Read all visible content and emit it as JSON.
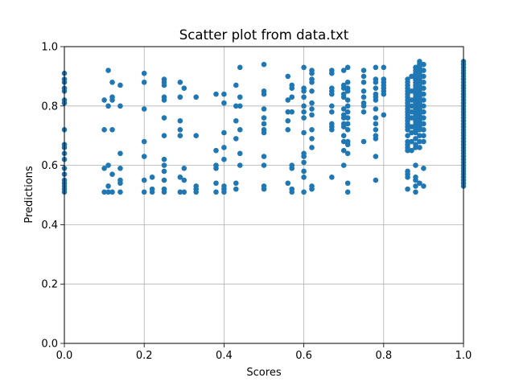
{
  "chart_data": {
    "type": "scatter",
    "title": "Scatter plot from data.txt",
    "xlabel": "Scores",
    "ylabel": "Predictions",
    "xlim": [
      0,
      1
    ],
    "ylim": [
      0,
      1
    ],
    "xticks": [
      "0.0",
      "0.2",
      "0.4",
      "0.6",
      "0.8",
      "1.0"
    ],
    "yticks": [
      "0.0",
      "0.2",
      "0.4",
      "0.6",
      "0.8",
      "1.0"
    ],
    "grid": true,
    "marker_color": "#1f77b4",
    "points": [
      [
        0.0,
        0.91
      ],
      [
        0.0,
        0.89
      ],
      [
        0.0,
        0.88
      ],
      [
        0.0,
        0.86
      ],
      [
        0.0,
        0.85
      ],
      [
        0.0,
        0.82
      ],
      [
        0.0,
        0.81
      ],
      [
        0.0,
        0.72
      ],
      [
        0.0,
        0.67
      ],
      [
        0.0,
        0.66
      ],
      [
        0.0,
        0.64
      ],
      [
        0.0,
        0.62
      ],
      [
        0.0,
        0.59
      ],
      [
        0.0,
        0.57
      ],
      [
        0.0,
        0.55
      ],
      [
        0.0,
        0.54
      ],
      [
        0.0,
        0.53
      ],
      [
        0.0,
        0.52
      ],
      [
        0.0,
        0.51
      ],
      [
        0.1,
        0.82
      ],
      [
        0.1,
        0.72
      ],
      [
        0.1,
        0.59
      ],
      [
        0.1,
        0.51
      ],
      [
        0.11,
        0.92
      ],
      [
        0.11,
        0.8
      ],
      [
        0.11,
        0.6
      ],
      [
        0.11,
        0.53
      ],
      [
        0.11,
        0.51
      ],
      [
        0.12,
        0.88
      ],
      [
        0.12,
        0.83
      ],
      [
        0.12,
        0.82
      ],
      [
        0.12,
        0.72
      ],
      [
        0.12,
        0.57
      ],
      [
        0.12,
        0.51
      ],
      [
        0.14,
        0.87
      ],
      [
        0.14,
        0.8
      ],
      [
        0.14,
        0.64
      ],
      [
        0.14,
        0.59
      ],
      [
        0.14,
        0.55
      ],
      [
        0.14,
        0.54
      ],
      [
        0.14,
        0.51
      ],
      [
        0.2,
        0.91
      ],
      [
        0.2,
        0.88
      ],
      [
        0.2,
        0.79
      ],
      [
        0.2,
        0.68
      ],
      [
        0.2,
        0.63
      ],
      [
        0.2,
        0.55
      ],
      [
        0.2,
        0.51
      ],
      [
        0.22,
        0.56
      ],
      [
        0.22,
        0.52
      ],
      [
        0.22,
        0.51
      ],
      [
        0.25,
        0.89
      ],
      [
        0.25,
        0.88
      ],
      [
        0.25,
        0.87
      ],
      [
        0.25,
        0.83
      ],
      [
        0.25,
        0.82
      ],
      [
        0.25,
        0.76
      ],
      [
        0.25,
        0.7
      ],
      [
        0.25,
        0.62
      ],
      [
        0.25,
        0.6
      ],
      [
        0.25,
        0.58
      ],
      [
        0.25,
        0.55
      ],
      [
        0.25,
        0.52
      ],
      [
        0.25,
        0.51
      ],
      [
        0.29,
        0.88
      ],
      [
        0.29,
        0.83
      ],
      [
        0.29,
        0.75
      ],
      [
        0.29,
        0.72
      ],
      [
        0.29,
        0.7
      ],
      [
        0.29,
        0.56
      ],
      [
        0.29,
        0.51
      ],
      [
        0.3,
        0.86
      ],
      [
        0.3,
        0.59
      ],
      [
        0.3,
        0.55
      ],
      [
        0.3,
        0.51
      ],
      [
        0.33,
        0.83
      ],
      [
        0.33,
        0.7
      ],
      [
        0.33,
        0.53
      ],
      [
        0.33,
        0.52
      ],
      [
        0.33,
        0.51
      ],
      [
        0.38,
        0.84
      ],
      [
        0.38,
        0.65
      ],
      [
        0.38,
        0.6
      ],
      [
        0.38,
        0.59
      ],
      [
        0.38,
        0.54
      ],
      [
        0.38,
        0.51
      ],
      [
        0.4,
        0.84
      ],
      [
        0.4,
        0.81
      ],
      [
        0.4,
        0.71
      ],
      [
        0.4,
        0.66
      ],
      [
        0.4,
        0.62
      ],
      [
        0.4,
        0.53
      ],
      [
        0.4,
        0.52
      ],
      [
        0.4,
        0.51
      ],
      [
        0.43,
        0.87
      ],
      [
        0.43,
        0.8
      ],
      [
        0.43,
        0.75
      ],
      [
        0.43,
        0.69
      ],
      [
        0.43,
        0.54
      ],
      [
        0.43,
        0.52
      ],
      [
        0.44,
        0.93
      ],
      [
        0.44,
        0.83
      ],
      [
        0.44,
        0.8
      ],
      [
        0.44,
        0.72
      ],
      [
        0.44,
        0.64
      ],
      [
        0.44,
        0.6
      ],
      [
        0.5,
        0.94
      ],
      [
        0.5,
        0.85
      ],
      [
        0.5,
        0.84
      ],
      [
        0.5,
        0.79
      ],
      [
        0.5,
        0.76
      ],
      [
        0.5,
        0.74
      ],
      [
        0.5,
        0.72
      ],
      [
        0.5,
        0.71
      ],
      [
        0.5,
        0.63
      ],
      [
        0.5,
        0.6
      ],
      [
        0.5,
        0.53
      ],
      [
        0.5,
        0.52
      ],
      [
        0.56,
        0.9
      ],
      [
        0.56,
        0.82
      ],
      [
        0.56,
        0.78
      ],
      [
        0.56,
        0.75
      ],
      [
        0.56,
        0.72
      ],
      [
        0.56,
        0.54
      ],
      [
        0.57,
        0.87
      ],
      [
        0.57,
        0.86
      ],
      [
        0.57,
        0.83
      ],
      [
        0.57,
        0.78
      ],
      [
        0.57,
        0.6
      ],
      [
        0.57,
        0.59
      ],
      [
        0.57,
        0.52
      ],
      [
        0.57,
        0.51
      ],
      [
        0.6,
        0.93
      ],
      [
        0.6,
        0.86
      ],
      [
        0.6,
        0.85
      ],
      [
        0.6,
        0.83
      ],
      [
        0.6,
        0.8
      ],
      [
        0.6,
        0.78
      ],
      [
        0.6,
        0.76
      ],
      [
        0.6,
        0.71
      ],
      [
        0.6,
        0.64
      ],
      [
        0.6,
        0.63
      ],
      [
        0.6,
        0.61
      ],
      [
        0.6,
        0.58
      ],
      [
        0.6,
        0.56
      ],
      [
        0.6,
        0.51
      ],
      [
        0.62,
        0.92
      ],
      [
        0.62,
        0.91
      ],
      [
        0.62,
        0.89
      ],
      [
        0.62,
        0.88
      ],
      [
        0.62,
        0.85
      ],
      [
        0.62,
        0.81
      ],
      [
        0.62,
        0.79
      ],
      [
        0.62,
        0.77
      ],
      [
        0.62,
        0.72
      ],
      [
        0.62,
        0.69
      ],
      [
        0.62,
        0.66
      ],
      [
        0.62,
        0.53
      ],
      [
        0.62,
        0.52
      ],
      [
        0.67,
        0.92
      ],
      [
        0.67,
        0.91
      ],
      [
        0.67,
        0.86
      ],
      [
        0.67,
        0.85
      ],
      [
        0.67,
        0.84
      ],
      [
        0.67,
        0.8
      ],
      [
        0.67,
        0.78
      ],
      [
        0.67,
        0.74
      ],
      [
        0.67,
        0.73
      ],
      [
        0.67,
        0.72
      ],
      [
        0.67,
        0.56
      ],
      [
        0.7,
        0.92
      ],
      [
        0.7,
        0.87
      ],
      [
        0.7,
        0.86
      ],
      [
        0.7,
        0.84
      ],
      [
        0.7,
        0.83
      ],
      [
        0.7,
        0.79
      ],
      [
        0.7,
        0.77
      ],
      [
        0.7,
        0.76
      ],
      [
        0.7,
        0.74
      ],
      [
        0.7,
        0.73
      ],
      [
        0.7,
        0.7
      ],
      [
        0.7,
        0.68
      ],
      [
        0.7,
        0.65
      ],
      [
        0.7,
        0.6
      ],
      [
        0.71,
        0.93
      ],
      [
        0.71,
        0.88
      ],
      [
        0.71,
        0.86
      ],
      [
        0.71,
        0.85
      ],
      [
        0.71,
        0.82
      ],
      [
        0.71,
        0.8
      ],
      [
        0.71,
        0.78
      ],
      [
        0.71,
        0.76
      ],
      [
        0.71,
        0.74
      ],
      [
        0.71,
        0.72
      ],
      [
        0.71,
        0.68
      ],
      [
        0.71,
        0.67
      ],
      [
        0.71,
        0.64
      ],
      [
        0.71,
        0.54
      ],
      [
        0.71,
        0.51
      ],
      [
        0.75,
        0.92
      ],
      [
        0.75,
        0.9
      ],
      [
        0.75,
        0.88
      ],
      [
        0.75,
        0.85
      ],
      [
        0.75,
        0.83
      ],
      [
        0.75,
        0.81
      ],
      [
        0.75,
        0.8
      ],
      [
        0.75,
        0.78
      ],
      [
        0.75,
        0.68
      ],
      [
        0.78,
        0.93
      ],
      [
        0.78,
        0.89
      ],
      [
        0.78,
        0.88
      ],
      [
        0.78,
        0.86
      ],
      [
        0.78,
        0.84
      ],
      [
        0.78,
        0.83
      ],
      [
        0.78,
        0.82
      ],
      [
        0.78,
        0.79
      ],
      [
        0.78,
        0.76
      ],
      [
        0.78,
        0.74
      ],
      [
        0.78,
        0.72
      ],
      [
        0.78,
        0.7
      ],
      [
        0.78,
        0.69
      ],
      [
        0.78,
        0.63
      ],
      [
        0.78,
        0.55
      ],
      [
        0.8,
        0.93
      ],
      [
        0.8,
        0.89
      ],
      [
        0.8,
        0.88
      ],
      [
        0.8,
        0.87
      ],
      [
        0.8,
        0.86
      ],
      [
        0.8,
        0.85
      ],
      [
        0.8,
        0.84
      ],
      [
        0.8,
        0.77
      ],
      [
        0.86,
        0.89
      ],
      [
        0.86,
        0.88
      ],
      [
        0.86,
        0.87
      ],
      [
        0.86,
        0.86
      ],
      [
        0.86,
        0.85
      ],
      [
        0.86,
        0.84
      ],
      [
        0.86,
        0.83
      ],
      [
        0.86,
        0.82
      ],
      [
        0.86,
        0.81
      ],
      [
        0.86,
        0.8
      ],
      [
        0.86,
        0.79
      ],
      [
        0.86,
        0.78
      ],
      [
        0.86,
        0.77
      ],
      [
        0.86,
        0.76
      ],
      [
        0.86,
        0.75
      ],
      [
        0.86,
        0.74
      ],
      [
        0.86,
        0.73
      ],
      [
        0.86,
        0.72
      ],
      [
        0.86,
        0.7
      ],
      [
        0.86,
        0.68
      ],
      [
        0.86,
        0.67
      ],
      [
        0.86,
        0.66
      ],
      [
        0.86,
        0.65
      ],
      [
        0.86,
        0.58
      ],
      [
        0.86,
        0.57
      ],
      [
        0.86,
        0.56
      ],
      [
        0.86,
        0.52
      ],
      [
        0.87,
        0.9
      ],
      [
        0.87,
        0.85
      ],
      [
        0.87,
        0.82
      ],
      [
        0.87,
        0.8
      ],
      [
        0.87,
        0.78
      ],
      [
        0.87,
        0.76
      ],
      [
        0.87,
        0.73
      ],
      [
        0.87,
        0.71
      ],
      [
        0.87,
        0.68
      ],
      [
        0.87,
        0.65
      ],
      [
        0.88,
        0.93
      ],
      [
        0.88,
        0.92
      ],
      [
        0.88,
        0.91
      ],
      [
        0.88,
        0.9
      ],
      [
        0.88,
        0.89
      ],
      [
        0.88,
        0.88
      ],
      [
        0.88,
        0.87
      ],
      [
        0.88,
        0.86
      ],
      [
        0.88,
        0.85
      ],
      [
        0.88,
        0.84
      ],
      [
        0.88,
        0.83
      ],
      [
        0.88,
        0.82
      ],
      [
        0.88,
        0.81
      ],
      [
        0.88,
        0.8
      ],
      [
        0.88,
        0.79
      ],
      [
        0.88,
        0.78
      ],
      [
        0.88,
        0.77
      ],
      [
        0.88,
        0.76
      ],
      [
        0.88,
        0.75
      ],
      [
        0.88,
        0.74
      ],
      [
        0.88,
        0.73
      ],
      [
        0.88,
        0.72
      ],
      [
        0.88,
        0.71
      ],
      [
        0.88,
        0.69
      ],
      [
        0.88,
        0.67
      ],
      [
        0.88,
        0.66
      ],
      [
        0.88,
        0.6
      ],
      [
        0.88,
        0.56
      ],
      [
        0.88,
        0.55
      ],
      [
        0.88,
        0.53
      ],
      [
        0.88,
        0.51
      ],
      [
        0.89,
        0.95
      ],
      [
        0.89,
        0.94
      ],
      [
        0.89,
        0.93
      ],
      [
        0.89,
        0.92
      ],
      [
        0.89,
        0.91
      ],
      [
        0.89,
        0.9
      ],
      [
        0.89,
        0.89
      ],
      [
        0.89,
        0.88
      ],
      [
        0.89,
        0.87
      ],
      [
        0.89,
        0.86
      ],
      [
        0.89,
        0.85
      ],
      [
        0.89,
        0.84
      ],
      [
        0.89,
        0.83
      ],
      [
        0.89,
        0.82
      ],
      [
        0.89,
        0.81
      ],
      [
        0.89,
        0.8
      ],
      [
        0.89,
        0.79
      ],
      [
        0.89,
        0.78
      ],
      [
        0.89,
        0.77
      ],
      [
        0.89,
        0.76
      ],
      [
        0.89,
        0.75
      ],
      [
        0.89,
        0.74
      ],
      [
        0.89,
        0.73
      ],
      [
        0.89,
        0.72
      ],
      [
        0.89,
        0.7
      ],
      [
        0.89,
        0.68
      ],
      [
        0.89,
        0.66
      ],
      [
        0.89,
        0.54
      ],
      [
        0.9,
        0.94
      ],
      [
        0.9,
        0.92
      ],
      [
        0.9,
        0.9
      ],
      [
        0.9,
        0.88
      ],
      [
        0.9,
        0.86
      ],
      [
        0.9,
        0.84
      ],
      [
        0.9,
        0.82
      ],
      [
        0.9,
        0.8
      ],
      [
        0.9,
        0.78
      ],
      [
        0.9,
        0.76
      ],
      [
        0.9,
        0.74
      ],
      [
        0.9,
        0.72
      ],
      [
        0.9,
        0.7
      ],
      [
        0.9,
        0.68
      ],
      [
        0.9,
        0.59
      ],
      [
        0.9,
        0.53
      ],
      [
        1.0,
        0.95
      ],
      [
        1.0,
        0.94
      ],
      [
        1.0,
        0.93
      ],
      [
        1.0,
        0.92
      ],
      [
        1.0,
        0.91
      ],
      [
        1.0,
        0.9
      ],
      [
        1.0,
        0.89
      ],
      [
        1.0,
        0.88
      ],
      [
        1.0,
        0.87
      ],
      [
        1.0,
        0.86
      ],
      [
        1.0,
        0.85
      ],
      [
        1.0,
        0.84
      ],
      [
        1.0,
        0.83
      ],
      [
        1.0,
        0.82
      ],
      [
        1.0,
        0.81
      ],
      [
        1.0,
        0.8
      ],
      [
        1.0,
        0.79
      ],
      [
        1.0,
        0.78
      ],
      [
        1.0,
        0.77
      ],
      [
        1.0,
        0.76
      ],
      [
        1.0,
        0.75
      ],
      [
        1.0,
        0.74
      ],
      [
        1.0,
        0.73
      ],
      [
        1.0,
        0.72
      ],
      [
        1.0,
        0.71
      ],
      [
        1.0,
        0.7
      ],
      [
        1.0,
        0.69
      ],
      [
        1.0,
        0.68
      ],
      [
        1.0,
        0.67
      ],
      [
        1.0,
        0.66
      ],
      [
        1.0,
        0.65
      ],
      [
        1.0,
        0.64
      ],
      [
        1.0,
        0.63
      ],
      [
        1.0,
        0.62
      ],
      [
        1.0,
        0.61
      ],
      [
        1.0,
        0.6
      ],
      [
        1.0,
        0.59
      ],
      [
        1.0,
        0.58
      ],
      [
        1.0,
        0.57
      ],
      [
        1.0,
        0.56
      ],
      [
        1.0,
        0.55
      ],
      [
        1.0,
        0.54
      ],
      [
        1.0,
        0.53
      ]
    ]
  }
}
